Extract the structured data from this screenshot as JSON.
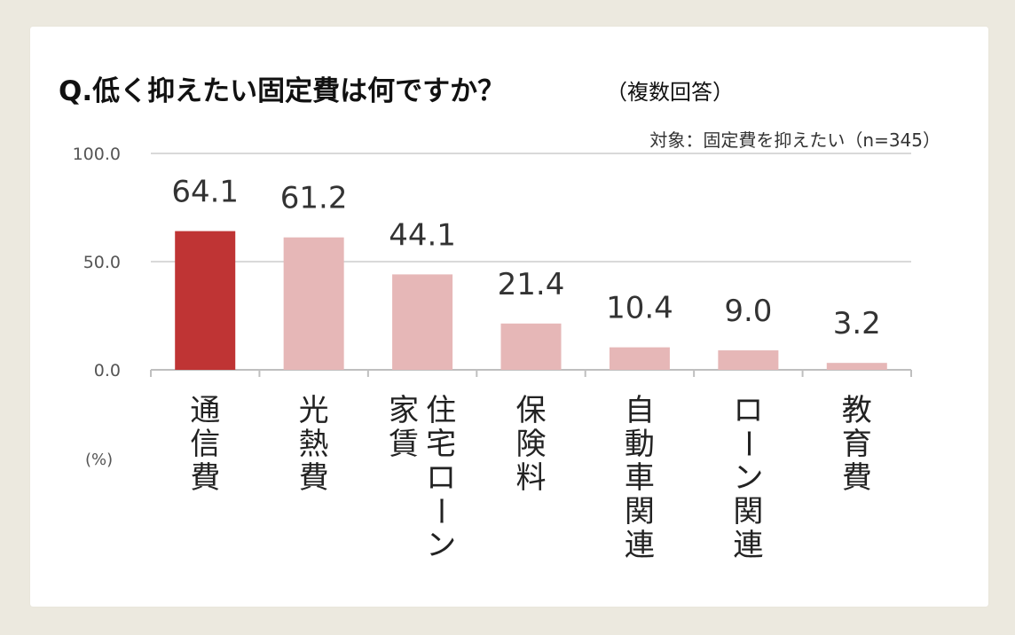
{
  "title": "Q.低く抑えたい固定費は何ですか？",
  "subtitle": "（複数回答）",
  "note": "対象：固定費を抑えたい（n=345）",
  "unit_label": "(%)",
  "colors": {
    "background": "#ece9df",
    "card": "#ffffff",
    "highlight_bar": "#bf3434",
    "bar": "#e6b7b7",
    "grid": "#d9d9d9",
    "axis": "#bfbfbf"
  },
  "chart_data": {
    "type": "bar",
    "categories": [
      "通信費",
      "光熱費",
      "住宅ローン 家賃",
      "保険料",
      "自動車関連",
      "ローン関連",
      "教育費"
    ],
    "category_lines": [
      [
        "通信費"
      ],
      [
        "光熱費"
      ],
      [
        "住宅ローン",
        "家賃"
      ],
      [
        "保険料"
      ],
      [
        "自動車関連"
      ],
      [
        "ローン関連"
      ],
      [
        "教育費"
      ]
    ],
    "values": [
      64.1,
      61.2,
      44.1,
      21.4,
      10.4,
      9.0,
      3.2
    ],
    "value_labels": [
      "64.1",
      "61.2",
      "44.1",
      "21.4",
      "10.4",
      "9.0",
      "3.2"
    ],
    "highlight_index": 0,
    "ylim": [
      0,
      100
    ],
    "yticks": [
      0,
      50,
      100
    ],
    "ytick_labels": [
      "0.0",
      "50.0",
      "100.0"
    ],
    "grid": true,
    "legend": "none"
  }
}
